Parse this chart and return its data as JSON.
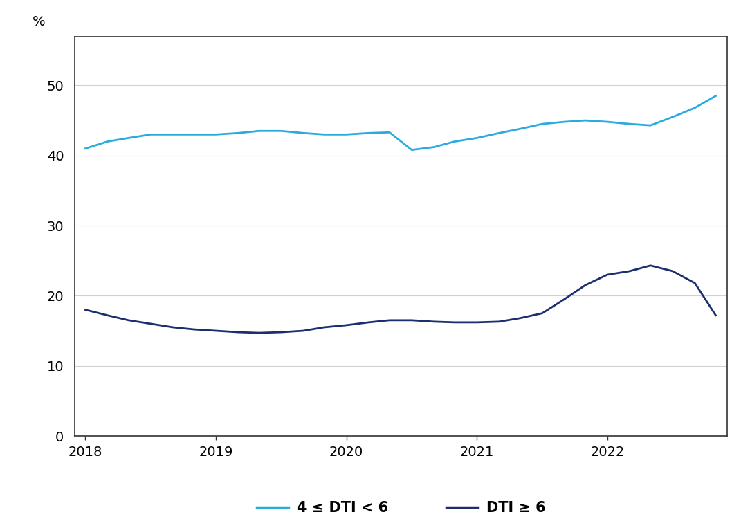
{
  "ylabel": "%",
  "ylim": [
    0,
    57
  ],
  "yticks": [
    0,
    10,
    20,
    30,
    40,
    50
  ],
  "xlim": [
    2017.92,
    2022.92
  ],
  "xticks": [
    2018,
    2019,
    2020,
    2021,
    2022
  ],
  "background_color": "#ffffff",
  "grid_color": "#d0d0d0",
  "spine_color": "#333333",
  "series1_color": "#29ABE2",
  "series2_color": "#1B2F6E",
  "legend_labels": [
    "4 ≤ DTI < 6",
    "DTI ≥ 6"
  ],
  "series1": {
    "x": [
      2018.0,
      2018.17,
      2018.33,
      2018.5,
      2018.67,
      2018.83,
      2019.0,
      2019.17,
      2019.33,
      2019.5,
      2019.67,
      2019.83,
      2020.0,
      2020.17,
      2020.33,
      2020.5,
      2020.67,
      2020.83,
      2021.0,
      2021.17,
      2021.33,
      2021.5,
      2021.67,
      2021.83,
      2022.0,
      2022.17,
      2022.33,
      2022.5,
      2022.67,
      2022.83
    ],
    "y": [
      41.0,
      42.0,
      42.5,
      43.0,
      43.0,
      43.0,
      43.0,
      43.2,
      43.5,
      43.5,
      43.2,
      43.0,
      43.0,
      43.2,
      43.3,
      40.8,
      41.2,
      42.0,
      42.5,
      43.2,
      43.8,
      44.5,
      44.8,
      45.0,
      44.8,
      44.5,
      44.3,
      45.5,
      46.8,
      48.5
    ]
  },
  "series2": {
    "x": [
      2018.0,
      2018.17,
      2018.33,
      2018.5,
      2018.67,
      2018.83,
      2019.0,
      2019.17,
      2019.33,
      2019.5,
      2019.67,
      2019.83,
      2020.0,
      2020.17,
      2020.33,
      2020.5,
      2020.67,
      2020.83,
      2021.0,
      2021.17,
      2021.33,
      2021.5,
      2021.67,
      2021.83,
      2022.0,
      2022.17,
      2022.33,
      2022.5,
      2022.67,
      2022.83
    ],
    "y": [
      18.0,
      17.2,
      16.5,
      16.0,
      15.5,
      15.2,
      15.0,
      14.8,
      14.7,
      14.8,
      15.0,
      15.5,
      15.8,
      16.2,
      16.5,
      16.5,
      16.3,
      16.2,
      16.2,
      16.3,
      16.8,
      17.5,
      19.5,
      21.5,
      23.0,
      23.5,
      24.3,
      23.5,
      21.8,
      17.2
    ]
  }
}
